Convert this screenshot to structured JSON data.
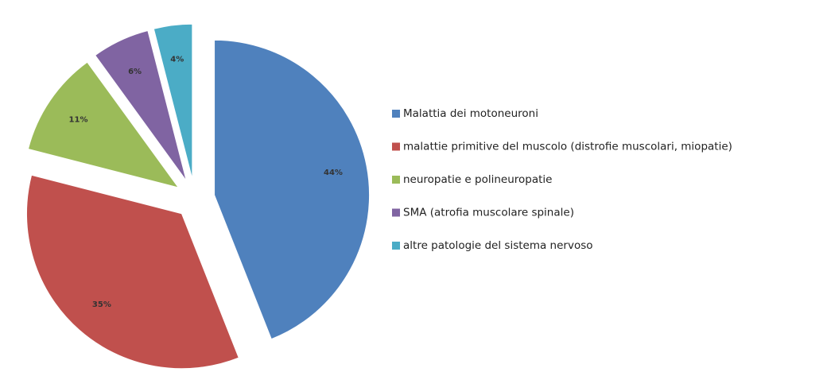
{
  "chart_data": {
    "type": "pie",
    "categories": [
      "Malattia dei motoneuroni",
      "malattie primitive del muscolo (distrofie muscolari, miopatie)",
      "neuropatie e polineuropatie",
      "SMA (atrofia muscolare spinale)",
      "altre patologie del sistema nervoso"
    ],
    "values": [
      44,
      35,
      11,
      6,
      4
    ],
    "value_labels": [
      "44%",
      "35%",
      "11%",
      "6%",
      "4%"
    ],
    "colors": [
      "#4f81bd",
      "#c0504d",
      "#9bbb59",
      "#8064a2",
      "#4bacc6"
    ],
    "exploded": true,
    "legend": "right"
  }
}
